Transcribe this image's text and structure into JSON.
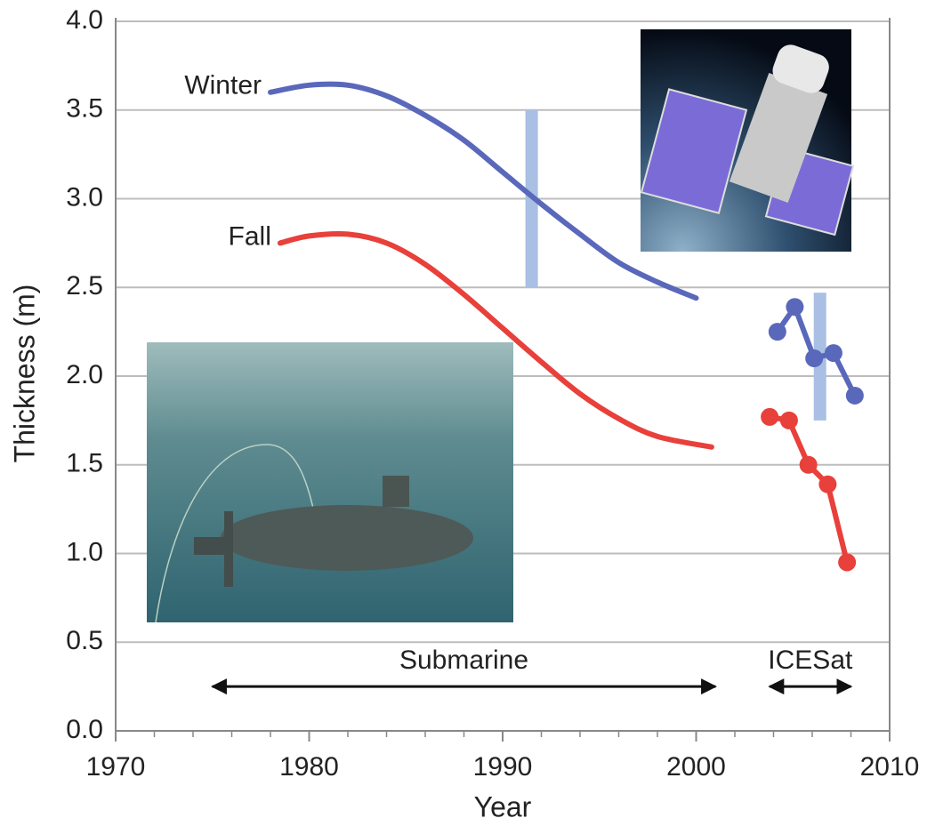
{
  "chart_data": {
    "type": "line",
    "xlabel": "Year",
    "ylabel": "Thickness (m)",
    "xlim": [
      1970,
      2010
    ],
    "xticks": [
      1970,
      1980,
      1990,
      2000,
      2010
    ],
    "xminorticks": [
      1972,
      1974,
      1976,
      1978,
      1982,
      1984,
      1986,
      1988,
      1992,
      1994,
      1996,
      1998,
      2002,
      2004,
      2006,
      2008
    ],
    "ylim": [
      0,
      4
    ],
    "yticks": [
      {
        "value": 0,
        "label": "0.0"
      },
      0.5,
      {
        "value": 1,
        "label": "1.0"
      },
      1.5,
      {
        "value": 2,
        "label": "2.0"
      },
      2.5,
      {
        "value": 3,
        "label": "3.0"
      },
      3.5,
      {
        "value": 4,
        "label": "4.0"
      }
    ],
    "grid": true,
    "series": [
      {
        "name": "Winter",
        "color": "#5a68bb",
        "markers": false,
        "x": [
          1978,
          1980,
          1982,
          1984,
          1986,
          1988,
          1990,
          1992,
          1994,
          1996,
          1998,
          2000
        ],
        "values": [
          3.6,
          3.64,
          3.64,
          3.58,
          3.47,
          3.33,
          3.15,
          2.97,
          2.8,
          2.64,
          2.53,
          2.44
        ]
      },
      {
        "name": "Fall",
        "color": "#e8403a",
        "markers": false,
        "x": [
          1978.5,
          1980,
          1982,
          1984,
          1986,
          1988,
          1990,
          1992,
          1994,
          1996,
          1998,
          2000.8
        ],
        "values": [
          2.75,
          2.79,
          2.8,
          2.75,
          2.63,
          2.46,
          2.27,
          2.08,
          1.9,
          1.76,
          1.66,
          1.6
        ]
      },
      {
        "color": "#5a68bb",
        "markers": true,
        "x": [
          2004.2,
          2005.1,
          2006.1,
          2007.1,
          2008.2
        ],
        "values": [
          2.25,
          2.39,
          2.1,
          2.13,
          1.89
        ]
      },
      {
        "color": "#e8403a",
        "markers": true,
        "x": [
          2003.8,
          2004.8,
          2005.8,
          2006.8,
          2007.8
        ],
        "values": [
          1.77,
          1.75,
          1.5,
          1.39,
          0.95
        ]
      }
    ],
    "uncertainty_bars": [
      {
        "x": 1991.5,
        "low": 2.5,
        "high": 3.5
      },
      {
        "x": 2006.4,
        "low": 1.75,
        "high": 2.47
      }
    ],
    "bar_color": "#a9bfe3",
    "periods": [
      {
        "label": "Submarine",
        "start": 1975,
        "end": 2001,
        "y": 0.25
      },
      {
        "label": "ICESat",
        "start": 2003.8,
        "end": 2008,
        "y": 0.25
      }
    ]
  }
}
